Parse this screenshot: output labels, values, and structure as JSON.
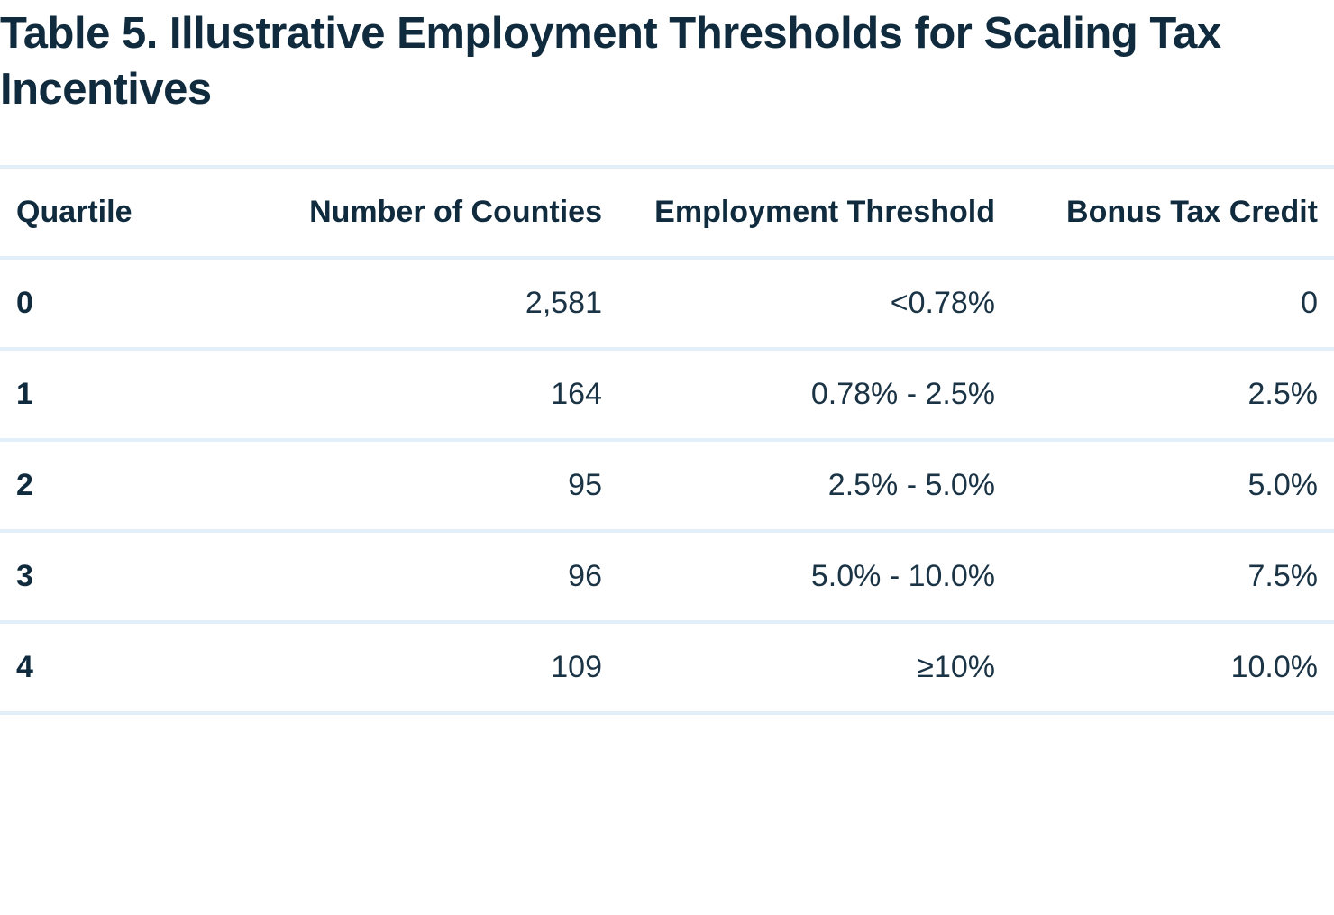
{
  "title": "Table 5.  Illustrative Employment Thresholds for Scaling Tax Incentives",
  "table": {
    "headers": [
      "Quartile",
      "Number of Counties",
      "Employment Threshold",
      "Bonus Tax Credit"
    ],
    "rows": [
      [
        "0",
        "2,581",
        "<0.78%",
        "0"
      ],
      [
        "1",
        "164",
        "0.78% - 2.5%",
        "2.5%"
      ],
      [
        "2",
        "95",
        "2.5% - 5.0%",
        "5.0%"
      ],
      [
        "3",
        "96",
        "5.0% - 10.0%",
        "7.5%"
      ],
      [
        "4",
        "109",
        "≥10%",
        "10.0%"
      ]
    ]
  },
  "colors": {
    "text": "#0f2b3d",
    "rule": "#e3eff8",
    "background": "#ffffff"
  }
}
